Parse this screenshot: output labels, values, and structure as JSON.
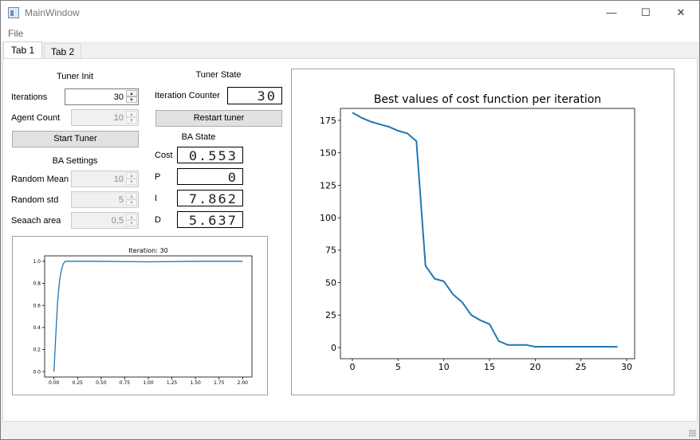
{
  "window": {
    "title": "MainWindow",
    "controls": {
      "minimize": "—",
      "maximize": "☐",
      "close": "✕"
    }
  },
  "menu": {
    "file": "File"
  },
  "tabs": [
    {
      "label": "Tab 1",
      "active": true
    },
    {
      "label": "Tab 2",
      "active": false
    }
  ],
  "tuner_init": {
    "heading": "Tuner Init",
    "iterations_label": "Iterations",
    "iterations_value": "30",
    "agent_count_label": "Agent Count",
    "agent_count_value": "10",
    "start_button": "Start Tuner"
  },
  "ba_settings": {
    "heading": "BA Settings",
    "random_mean_label": "Random Mean",
    "random_mean_value": "10",
    "random_std_label": "Random std",
    "random_std_value": "5",
    "search_area_label": "Seaach area",
    "search_area_value": "0,5"
  },
  "tuner_state": {
    "heading": "Tuner State",
    "iteration_counter_label": "Iteration Counter",
    "iteration_counter_value": "30",
    "restart_button": "Restart tuner"
  },
  "ba_state": {
    "heading": "BA State",
    "cost_label": "Cost",
    "cost_value": "0.553",
    "p_label": "P",
    "p_value": "0",
    "i_label": "I",
    "i_value": "7.862",
    "d_label": "D",
    "d_value": "5.637"
  },
  "chart_data": [
    {
      "type": "line",
      "title": "Iteration: 30",
      "xlabel": "",
      "ylabel": "",
      "xlim": [
        0.0,
        2.0
      ],
      "ylim": [
        0.0,
        1.0
      ],
      "xticks": [
        "0.00",
        "0.25",
        "0.50",
        "0.75",
        "1.00",
        "1.25",
        "1.50",
        "1.75",
        "2.00"
      ],
      "yticks": [
        "0.0",
        "0.2",
        "0.4",
        "0.6",
        "0.8",
        "1.0"
      ],
      "series": [
        {
          "color": "#1f77b4",
          "x": [
            0.0,
            0.02,
            0.04,
            0.06,
            0.08,
            0.1,
            0.12,
            0.15,
            0.2,
            0.3,
            0.5,
            1.0,
            1.5,
            2.0
          ],
          "y": [
            0.0,
            0.35,
            0.65,
            0.83,
            0.93,
            0.98,
            1.0,
            1.0,
            1.0,
            1.0,
            1.0,
            0.995,
            1.0,
            1.0
          ]
        }
      ]
    },
    {
      "type": "line",
      "title": "Best values of cost function per iteration",
      "xlabel": "",
      "ylabel": "",
      "xlim": [
        0,
        30
      ],
      "ylim": [
        0,
        175
      ],
      "xticks": [
        "0",
        "5",
        "10",
        "15",
        "20",
        "25",
        "30"
      ],
      "yticks": [
        "0",
        "25",
        "50",
        "75",
        "100",
        "125",
        "150",
        "175"
      ],
      "series": [
        {
          "color": "#1f77b4",
          "x": [
            0,
            1,
            2,
            3,
            4,
            5,
            6,
            7,
            8,
            9,
            10,
            11,
            12,
            13,
            14,
            15,
            16,
            17,
            18,
            19,
            20,
            21,
            22,
            23,
            24,
            25,
            26,
            27,
            28,
            29
          ],
          "y": [
            181,
            177,
            174,
            172,
            170,
            167,
            165,
            159,
            63,
            53,
            51,
            41,
            35,
            25,
            21,
            18,
            5,
            2,
            2,
            2,
            0.6,
            0.6,
            0.6,
            0.6,
            0.6,
            0.6,
            0.6,
            0.6,
            0.6,
            0.553
          ]
        }
      ]
    }
  ]
}
